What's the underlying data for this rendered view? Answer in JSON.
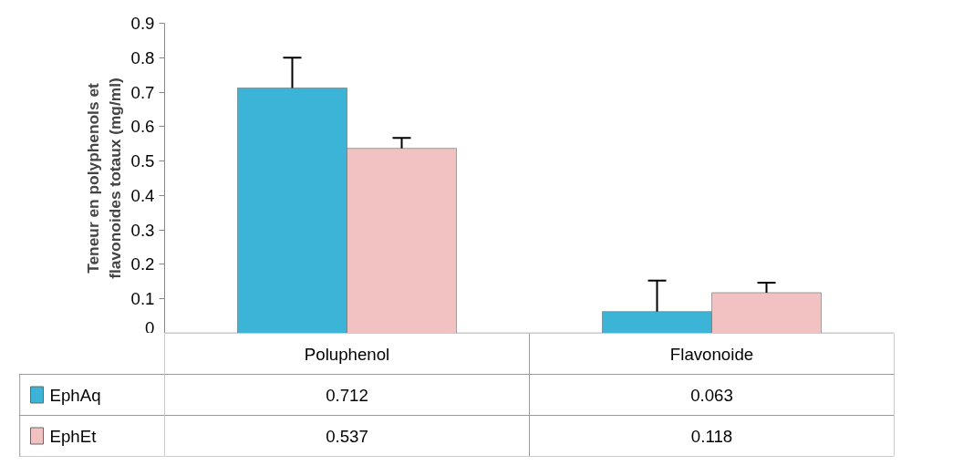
{
  "chart_data": {
    "type": "bar",
    "ylabel": "Teneur en polyphenols et flavonoides totaux (mg/ml)",
    "categories": [
      "Poluphenol",
      "Flavonoide"
    ],
    "series": [
      {
        "name": "EphAq",
        "color": "#3cb4d8",
        "values": [
          0.712,
          0.063
        ],
        "errors": [
          [
            0.712,
            0.8
          ],
          [
            0.063,
            0.153
          ]
        ]
      },
      {
        "name": "EphEt",
        "color": "#f2c2c2",
        "values": [
          0.537,
          0.118
        ],
        "errors": [
          [
            0.537,
            0.567
          ],
          [
            0.118,
            0.147
          ]
        ]
      }
    ],
    "ylim": [
      0,
      0.9
    ],
    "yticks": [
      0,
      0.1,
      0.2,
      0.3,
      0.4,
      0.5,
      0.6,
      0.7,
      0.8,
      0.9
    ],
    "grid": false,
    "data_labels": true,
    "legend": "bottom left"
  }
}
